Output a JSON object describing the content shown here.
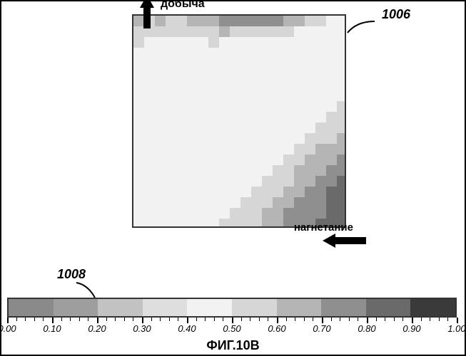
{
  "figure": {
    "label": "ФИГ.10В",
    "callouts": {
      "plot": "1006",
      "colorbar": "1008"
    },
    "arrows": {
      "top_label": "добыча",
      "right_label": "нагнетание"
    }
  },
  "plot": {
    "type": "heatmap",
    "grid_size": 20,
    "border_color": "#333333",
    "cells_comment": "values 0..1 mapped via colorbar palette; noisy saturation field, light center, darker top band and bottom-right corner",
    "value_field": [
      [
        0.62,
        0.6,
        0.6,
        0.58,
        0.58,
        0.65,
        0.68,
        0.7,
        0.72,
        0.73,
        0.75,
        0.75,
        0.75,
        0.73,
        0.7,
        0.65,
        0.58,
        0.52,
        0.48,
        0.46
      ],
      [
        0.55,
        0.53,
        0.52,
        0.51,
        0.51,
        0.55,
        0.58,
        0.6,
        0.6,
        0.6,
        0.58,
        0.57,
        0.55,
        0.53,
        0.51,
        0.49,
        0.47,
        0.46,
        0.45,
        0.45
      ],
      [
        0.5,
        0.49,
        0.48,
        0.48,
        0.48,
        0.49,
        0.5,
        0.5,
        0.5,
        0.49,
        0.49,
        0.48,
        0.48,
        0.47,
        0.47,
        0.46,
        0.46,
        0.45,
        0.45,
        0.45
      ],
      [
        0.48,
        0.47,
        0.47,
        0.47,
        0.47,
        0.47,
        0.47,
        0.47,
        0.47,
        0.47,
        0.46,
        0.46,
        0.46,
        0.46,
        0.46,
        0.45,
        0.45,
        0.45,
        0.45,
        0.45
      ],
      [
        0.47,
        0.47,
        0.46,
        0.46,
        0.46,
        0.46,
        0.46,
        0.46,
        0.46,
        0.46,
        0.46,
        0.46,
        0.45,
        0.45,
        0.45,
        0.45,
        0.45,
        0.45,
        0.45,
        0.45
      ],
      [
        0.47,
        0.46,
        0.46,
        0.46,
        0.46,
        0.46,
        0.46,
        0.46,
        0.46,
        0.46,
        0.45,
        0.45,
        0.45,
        0.45,
        0.45,
        0.45,
        0.45,
        0.45,
        0.46,
        0.46
      ],
      [
        0.46,
        0.46,
        0.46,
        0.46,
        0.46,
        0.46,
        0.46,
        0.45,
        0.45,
        0.45,
        0.45,
        0.45,
        0.45,
        0.45,
        0.45,
        0.45,
        0.46,
        0.46,
        0.46,
        0.47
      ],
      [
        0.46,
        0.46,
        0.46,
        0.46,
        0.45,
        0.45,
        0.45,
        0.45,
        0.45,
        0.45,
        0.45,
        0.45,
        0.45,
        0.45,
        0.45,
        0.46,
        0.46,
        0.47,
        0.47,
        0.48
      ],
      [
        0.46,
        0.46,
        0.46,
        0.45,
        0.45,
        0.45,
        0.45,
        0.45,
        0.45,
        0.45,
        0.45,
        0.45,
        0.45,
        0.45,
        0.46,
        0.46,
        0.47,
        0.48,
        0.49,
        0.5
      ],
      [
        0.46,
        0.46,
        0.45,
        0.45,
        0.45,
        0.45,
        0.45,
        0.45,
        0.45,
        0.45,
        0.45,
        0.45,
        0.45,
        0.46,
        0.46,
        0.47,
        0.48,
        0.5,
        0.52,
        0.54
      ],
      [
        0.46,
        0.46,
        0.45,
        0.45,
        0.45,
        0.45,
        0.45,
        0.45,
        0.45,
        0.45,
        0.45,
        0.45,
        0.46,
        0.46,
        0.47,
        0.48,
        0.5,
        0.53,
        0.56,
        0.58
      ],
      [
        0.46,
        0.45,
        0.45,
        0.45,
        0.45,
        0.45,
        0.45,
        0.45,
        0.45,
        0.45,
        0.45,
        0.46,
        0.46,
        0.47,
        0.48,
        0.5,
        0.53,
        0.57,
        0.6,
        0.62
      ],
      [
        0.45,
        0.45,
        0.45,
        0.45,
        0.45,
        0.45,
        0.45,
        0.45,
        0.45,
        0.45,
        0.46,
        0.46,
        0.47,
        0.48,
        0.5,
        0.53,
        0.57,
        0.61,
        0.65,
        0.68
      ],
      [
        0.45,
        0.45,
        0.45,
        0.45,
        0.45,
        0.45,
        0.45,
        0.45,
        0.45,
        0.46,
        0.46,
        0.47,
        0.48,
        0.5,
        0.53,
        0.57,
        0.61,
        0.66,
        0.7,
        0.73
      ],
      [
        0.45,
        0.45,
        0.45,
        0.45,
        0.45,
        0.45,
        0.45,
        0.45,
        0.46,
        0.46,
        0.47,
        0.48,
        0.5,
        0.53,
        0.57,
        0.61,
        0.66,
        0.7,
        0.74,
        0.77
      ],
      [
        0.45,
        0.45,
        0.45,
        0.45,
        0.45,
        0.45,
        0.45,
        0.46,
        0.46,
        0.47,
        0.48,
        0.5,
        0.53,
        0.56,
        0.6,
        0.65,
        0.7,
        0.74,
        0.78,
        0.8
      ],
      [
        0.45,
        0.45,
        0.45,
        0.45,
        0.45,
        0.45,
        0.46,
        0.46,
        0.47,
        0.48,
        0.5,
        0.52,
        0.55,
        0.59,
        0.64,
        0.69,
        0.73,
        0.77,
        0.8,
        0.82
      ],
      [
        0.45,
        0.45,
        0.45,
        0.45,
        0.45,
        0.46,
        0.46,
        0.47,
        0.48,
        0.5,
        0.52,
        0.55,
        0.58,
        0.62,
        0.67,
        0.72,
        0.76,
        0.79,
        0.81,
        0.83
      ],
      [
        0.45,
        0.45,
        0.45,
        0.45,
        0.46,
        0.46,
        0.47,
        0.48,
        0.5,
        0.52,
        0.54,
        0.57,
        0.61,
        0.65,
        0.7,
        0.74,
        0.78,
        0.8,
        0.82,
        0.84
      ],
      [
        0.45,
        0.45,
        0.45,
        0.46,
        0.46,
        0.47,
        0.48,
        0.5,
        0.52,
        0.54,
        0.56,
        0.59,
        0.63,
        0.68,
        0.72,
        0.76,
        0.79,
        0.81,
        0.83,
        0.85
      ]
    ]
  },
  "colorbar": {
    "type": "colorbar",
    "range": [
      0.0,
      1.0
    ],
    "tick_step": 0.1,
    "minor_tick_step": 0.02,
    "tick_labels": [
      "0.00",
      "0.10",
      "0.20",
      "0.30",
      "0.40",
      "0.50",
      "0.60",
      "0.70",
      "0.80",
      "0.90",
      "1.00"
    ],
    "label_fontsize": 13,
    "label_fontstyle": "italic",
    "border_color": "#333333",
    "segments": [
      {
        "stop": 0.1,
        "color": "#8a8a8a"
      },
      {
        "stop": 0.2,
        "color": "#9e9e9e"
      },
      {
        "stop": 0.3,
        "color": "#c2c2c2"
      },
      {
        "stop": 0.4,
        "color": "#dedede"
      },
      {
        "stop": 0.5,
        "color": "#f2f2f2"
      },
      {
        "stop": 0.6,
        "color": "#d6d6d6"
      },
      {
        "stop": 0.7,
        "color": "#b5b5b5"
      },
      {
        "stop": 0.8,
        "color": "#8f8f8f"
      },
      {
        "stop": 0.9,
        "color": "#6a6a6a"
      },
      {
        "stop": 1.0,
        "color": "#3a3a3a"
      }
    ]
  }
}
